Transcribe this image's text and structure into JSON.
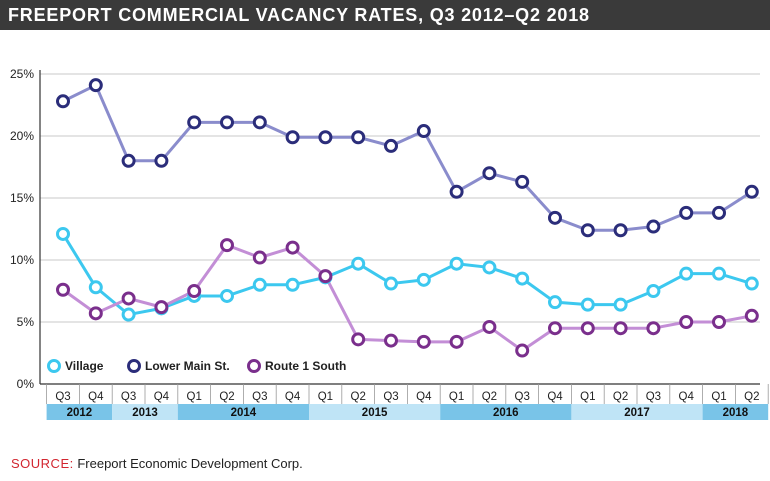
{
  "title": "FREEPORT COMMERCIAL VACANCY RATES, Q3 2012–Q2 2018",
  "source": {
    "label": "SOURCE:",
    "text": " Freeport Economic Development Corp."
  },
  "colors": {
    "title_bg": "#3a3a3a",
    "grid": "#c8c8c8",
    "axis": "#333333",
    "year_dark": "#79c4e8",
    "year_light": "#bfe4f6"
  },
  "chart_data": {
    "type": "line",
    "title": "FREEPORT COMMERCIAL VACANCY RATES, Q3 2012–Q2 2018",
    "x": [
      "Q3",
      "Q4",
      "Q3",
      "Q4",
      "Q1",
      "Q2",
      "Q3",
      "Q4",
      "Q1",
      "Q2",
      "Q3",
      "Q4",
      "Q1",
      "Q2",
      "Q3",
      "Q4",
      "Q1",
      "Q2",
      "Q3",
      "Q4",
      "Q1",
      "Q2"
    ],
    "years": [
      {
        "label": "2012",
        "count": 2
      },
      {
        "label": "2013",
        "count": 2
      },
      {
        "label": "2014",
        "count": 4
      },
      {
        "label": "2015",
        "count": 4
      },
      {
        "label": "2016",
        "count": 4
      },
      {
        "label": "2017",
        "count": 4
      },
      {
        "label": "2018",
        "count": 2
      }
    ],
    "ylim": [
      0,
      25
    ],
    "yticks": [
      0,
      5,
      10,
      15,
      20,
      25
    ],
    "ytick_labels": [
      "0%",
      "5%",
      "10%",
      "15%",
      "20%",
      "25%"
    ],
    "grid": true,
    "legend_position": "bottom-left",
    "series": [
      {
        "name": "Village",
        "color": "#3cc8ef",
        "values": [
          12.1,
          7.8,
          5.6,
          6.1,
          7.1,
          7.1,
          8.0,
          8.0,
          8.6,
          9.7,
          8.1,
          8.4,
          9.7,
          9.4,
          8.5,
          6.6,
          6.4,
          6.4,
          7.5,
          8.9,
          8.9,
          8.1
        ]
      },
      {
        "name": "Lower Main St.",
        "color": "#2b2d7a",
        "line_color": "#8a8ccc",
        "values": [
          22.8,
          24.1,
          18.0,
          18.0,
          21.1,
          21.1,
          21.1,
          19.9,
          19.9,
          19.9,
          19.2,
          20.4,
          15.5,
          17.0,
          16.3,
          13.4,
          12.4,
          12.4,
          12.7,
          13.8,
          13.8,
          15.5
        ]
      },
      {
        "name": "Route 1 South",
        "color": "#7a2f8c",
        "line_color": "#c38ed6",
        "values": [
          7.6,
          5.7,
          6.9,
          6.2,
          7.5,
          11.2,
          10.2,
          11.0,
          8.7,
          3.6,
          3.5,
          3.4,
          3.4,
          4.6,
          2.7,
          4.5,
          4.5,
          4.5,
          4.5,
          5.0,
          5.0,
          5.5
        ]
      }
    ]
  }
}
